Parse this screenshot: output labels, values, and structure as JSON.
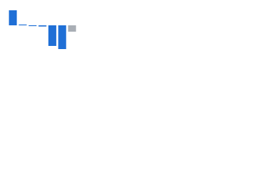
{
  "chart_data": {
    "type": "bar",
    "categories": [
      null,
      null,
      null,
      null,
      null,
      null,
      null
    ],
    "values": [
      19,
      1,
      -1,
      -1.5,
      -26,
      -30,
      -8
    ],
    "colors": [
      "#1f6fd6",
      "#1f6fd6",
      "#1f6fd6",
      "#1f6fd6",
      "#1f6fd6",
      "#1f6fd6",
      "#a9aeb5"
    ],
    "ylim": [
      -36,
      27
    ]
  }
}
